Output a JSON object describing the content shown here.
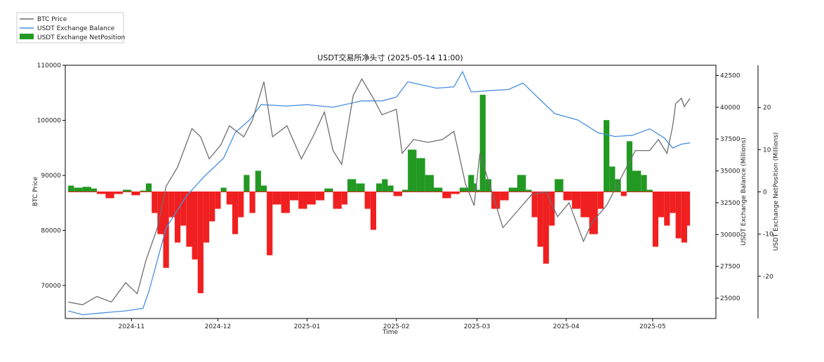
{
  "chart_data": {
    "type": "line",
    "title": "USDT交易所净头寸 (2025-05-14 11:00)",
    "xlabel": "Time",
    "y_left_label": "BTC Price",
    "y_right_label": "USDT Exchange Balance (Millions)",
    "y_right2_label": "USDT Exchange NetPosition (Millions)",
    "xlim": [
      "2024-10-09",
      "2025-05-23"
    ],
    "ylim_left": [
      64000,
      110000
    ],
    "ylim_right": [
      23400,
      43300
    ],
    "ylim_right2": [
      -30,
      30
    ],
    "x_tick_labels": [
      "2024-11",
      "2024-12",
      "2025-01",
      "2025-02",
      "2025-03",
      "2025-04",
      "2025-05"
    ],
    "x_tick_dates": [
      "2024-11-01",
      "2024-12-01",
      "2025-01-01",
      "2025-02-01",
      "2025-03-01",
      "2025-04-01",
      "2025-05-01"
    ],
    "y_left_ticks": [
      "70000",
      "80000",
      "90000",
      "100000",
      "110000"
    ],
    "y_left_tick_values": [
      70000,
      80000,
      90000,
      100000,
      110000
    ],
    "y_right_ticks": [
      "25000",
      "27500",
      "30000",
      "32500",
      "35000",
      "37500",
      "40000",
      "42500"
    ],
    "y_right_tick_values": [
      25000,
      27500,
      30000,
      32500,
      35000,
      37500,
      40000,
      42500
    ],
    "y_right2_ticks": [
      "-20",
      "-10",
      "0",
      "10",
      "20"
    ],
    "y_right2_tick_values": [
      -20,
      -10,
      0,
      10,
      20
    ],
    "legend_position": "top-left",
    "grid": false,
    "colors": {
      "btc": "#6e6e6e",
      "balance": "#4a8fe0",
      "positive": "#229922",
      "negative": "#f02020"
    },
    "series": [
      {
        "name": "BTC Price",
        "axis": "left",
        "points": [
          [
            "2024-10-10",
            67000
          ],
          [
            "2024-10-15",
            66500
          ],
          [
            "2024-10-20",
            68000
          ],
          [
            "2024-10-25",
            67000
          ],
          [
            "2024-10-30",
            70500
          ],
          [
            "2024-11-03",
            68500
          ],
          [
            "2024-11-06",
            74500
          ],
          [
            "2024-11-10",
            80500
          ],
          [
            "2024-11-13",
            88000
          ],
          [
            "2024-11-17",
            91500
          ],
          [
            "2024-11-22",
            98500
          ],
          [
            "2024-11-25",
            97000
          ],
          [
            "2024-11-28",
            93000
          ],
          [
            "2024-12-02",
            95500
          ],
          [
            "2024-12-05",
            99000
          ],
          [
            "2024-12-10",
            97000
          ],
          [
            "2024-12-13",
            100000
          ],
          [
            "2024-12-17",
            107000
          ],
          [
            "2024-12-20",
            97000
          ],
          [
            "2024-12-25",
            99000
          ],
          [
            "2024-12-30",
            93000
          ],
          [
            "2025-01-03",
            97000
          ],
          [
            "2025-01-07",
            101500
          ],
          [
            "2025-01-10",
            94500
          ],
          [
            "2025-01-13",
            92000
          ],
          [
            "2025-01-17",
            104500
          ],
          [
            "2025-01-20",
            107500
          ],
          [
            "2025-01-24",
            104000
          ],
          [
            "2025-01-27",
            101000
          ],
          [
            "2025-02-01",
            102000
          ],
          [
            "2025-02-03",
            94000
          ],
          [
            "2025-02-07",
            96500
          ],
          [
            "2025-02-12",
            96000
          ],
          [
            "2025-02-17",
            96500
          ],
          [
            "2025-02-21",
            98000
          ],
          [
            "2025-02-25",
            88500
          ],
          [
            "2025-02-28",
            84500
          ],
          [
            "2025-03-02",
            94000
          ],
          [
            "2025-03-05",
            89000
          ],
          [
            "2025-03-10",
            80500
          ],
          [
            "2025-03-15",
            83500
          ],
          [
            "2025-03-20",
            86500
          ],
          [
            "2025-03-25",
            87000
          ],
          [
            "2025-03-29",
            82500
          ],
          [
            "2025-04-02",
            85000
          ],
          [
            "2025-04-07",
            78000
          ],
          [
            "2025-04-10",
            81500
          ],
          [
            "2025-04-15",
            84500
          ],
          [
            "2025-04-22",
            91500
          ],
          [
            "2025-04-25",
            94500
          ],
          [
            "2025-04-30",
            94500
          ],
          [
            "2025-05-03",
            96500
          ],
          [
            "2025-05-06",
            94000
          ],
          [
            "2025-05-08",
            99000
          ],
          [
            "2025-05-09",
            103000
          ],
          [
            "2025-05-11",
            104000
          ],
          [
            "2025-05-12",
            102500
          ],
          [
            "2025-05-14",
            104000
          ]
        ]
      },
      {
        "name": "USDT Exchange Balance",
        "axis": "right",
        "points": [
          [
            "2024-10-10",
            24000
          ],
          [
            "2024-10-15",
            23700
          ],
          [
            "2024-10-20",
            23800
          ],
          [
            "2024-10-25",
            23900
          ],
          [
            "2024-10-30",
            24000
          ],
          [
            "2024-11-05",
            24200
          ],
          [
            "2024-11-07",
            25500
          ],
          [
            "2024-11-10",
            28000
          ],
          [
            "2024-11-13",
            30500
          ],
          [
            "2024-11-20",
            33000
          ],
          [
            "2024-11-26",
            34500
          ],
          [
            "2024-12-03",
            36000
          ],
          [
            "2024-12-07",
            38000
          ],
          [
            "2024-12-12",
            39000
          ],
          [
            "2024-12-16",
            40200
          ],
          [
            "2024-12-25",
            40100
          ],
          [
            "2025-01-01",
            40200
          ],
          [
            "2025-01-10",
            40000
          ],
          [
            "2025-01-20",
            40500
          ],
          [
            "2025-01-27",
            40500
          ],
          [
            "2025-02-01",
            40800
          ],
          [
            "2025-02-05",
            42000
          ],
          [
            "2025-02-15",
            41500
          ],
          [
            "2025-02-21",
            41600
          ],
          [
            "2025-02-24",
            42800
          ],
          [
            "2025-02-27",
            41200
          ],
          [
            "2025-03-05",
            41300
          ],
          [
            "2025-03-12",
            41400
          ],
          [
            "2025-03-17",
            41900
          ],
          [
            "2025-03-22",
            40800
          ],
          [
            "2025-03-28",
            39500
          ],
          [
            "2025-04-05",
            39000
          ],
          [
            "2025-04-12",
            38000
          ],
          [
            "2025-04-18",
            37700
          ],
          [
            "2025-04-24",
            37800
          ],
          [
            "2025-04-30",
            38300
          ],
          [
            "2025-05-05",
            37600
          ],
          [
            "2025-05-08",
            36800
          ],
          [
            "2025-05-11",
            37100
          ],
          [
            "2025-05-14",
            37200
          ]
        ]
      },
      {
        "name": "USDT Exchange NetPosition",
        "axis": "right2",
        "points": [
          [
            "2024-10-10",
            1.5
          ],
          [
            "2024-10-12",
            1.0
          ],
          [
            "2024-10-15",
            1.2
          ],
          [
            "2024-10-18",
            0.8
          ],
          [
            "2024-10-20",
            -0.5
          ],
          [
            "2024-10-23",
            -1.5
          ],
          [
            "2024-10-26",
            -0.5
          ],
          [
            "2024-10-29",
            0.5
          ],
          [
            "2024-11-01",
            -0.8
          ],
          [
            "2024-11-04",
            0.3
          ],
          [
            "2024-11-06",
            2.0
          ],
          [
            "2024-11-08",
            -5
          ],
          [
            "2024-11-10",
            -10
          ],
          [
            "2024-11-12",
            -18
          ],
          [
            "2024-11-14",
            -6
          ],
          [
            "2024-11-16",
            -12
          ],
          [
            "2024-11-18",
            -8
          ],
          [
            "2024-11-20",
            -13
          ],
          [
            "2024-11-22",
            -16
          ],
          [
            "2024-11-24",
            -24
          ],
          [
            "2024-11-26",
            -12
          ],
          [
            "2024-11-28",
            -7
          ],
          [
            "2024-11-30",
            -4
          ],
          [
            "2024-12-02",
            1.0
          ],
          [
            "2024-12-04",
            -3
          ],
          [
            "2024-12-06",
            -10
          ],
          [
            "2024-12-08",
            -6
          ],
          [
            "2024-12-10",
            4.0
          ],
          [
            "2024-12-12",
            -5
          ],
          [
            "2024-12-14",
            5.0
          ],
          [
            "2024-12-16",
            1.5
          ],
          [
            "2024-12-18",
            -15
          ],
          [
            "2024-12-20",
            -3
          ],
          [
            "2024-12-23",
            -5
          ],
          [
            "2024-12-26",
            -2
          ],
          [
            "2024-12-29",
            -4
          ],
          [
            "2025-01-01",
            -3
          ],
          [
            "2025-01-04",
            -2
          ],
          [
            "2025-01-07",
            0.8
          ],
          [
            "2025-01-10",
            -4
          ],
          [
            "2025-01-13",
            -3
          ],
          [
            "2025-01-15",
            3.0
          ],
          [
            "2025-01-18",
            2.0
          ],
          [
            "2025-01-21",
            -4
          ],
          [
            "2025-01-23",
            -9
          ],
          [
            "2025-01-25",
            2.0
          ],
          [
            "2025-01-27",
            3.0
          ],
          [
            "2025-01-29",
            1.5
          ],
          [
            "2025-01-31",
            -1
          ],
          [
            "2025-02-03",
            0.5
          ],
          [
            "2025-02-05",
            10
          ],
          [
            "2025-02-08",
            8
          ],
          [
            "2025-02-11",
            4
          ],
          [
            "2025-02-14",
            1
          ],
          [
            "2025-02-17",
            -1.5
          ],
          [
            "2025-02-20",
            -0.5
          ],
          [
            "2025-02-23",
            1.0
          ],
          [
            "2025-02-26",
            4.0
          ],
          [
            "2025-02-28",
            2.0
          ],
          [
            "2025-03-01",
            0.5
          ],
          [
            "2025-03-02",
            23
          ],
          [
            "2025-03-04",
            3.0
          ],
          [
            "2025-03-06",
            -4
          ],
          [
            "2025-03-09",
            -2
          ],
          [
            "2025-03-12",
            1.0
          ],
          [
            "2025-03-15",
            4.0
          ],
          [
            "2025-03-18",
            0.5
          ],
          [
            "2025-03-20",
            -6
          ],
          [
            "2025-03-22",
            -13
          ],
          [
            "2025-03-24",
            -17
          ],
          [
            "2025-03-26",
            -8
          ],
          [
            "2025-03-28",
            3.0
          ],
          [
            "2025-03-31",
            -2
          ],
          [
            "2025-04-03",
            -4
          ],
          [
            "2025-04-06",
            -6
          ],
          [
            "2025-04-09",
            -10
          ],
          [
            "2025-04-12",
            -4
          ],
          [
            "2025-04-14",
            17
          ],
          [
            "2025-04-16",
            6
          ],
          [
            "2025-04-18",
            3.0
          ],
          [
            "2025-04-20",
            -1
          ],
          [
            "2025-04-22",
            12
          ],
          [
            "2025-04-24",
            5.0
          ],
          [
            "2025-04-27",
            4.0
          ],
          [
            "2025-04-29",
            0.5
          ],
          [
            "2025-05-01",
            -13
          ],
          [
            "2025-05-03",
            -6
          ],
          [
            "2025-05-05",
            -8
          ],
          [
            "2025-05-07",
            -5
          ],
          [
            "2025-05-09",
            -11
          ],
          [
            "2025-05-11",
            -12
          ],
          [
            "2025-05-13",
            -8
          ],
          [
            "2025-05-14",
            -4
          ]
        ]
      }
    ]
  },
  "legend": {
    "items": [
      {
        "label": "BTC Price",
        "kind": "line",
        "color": "#6e6e6e"
      },
      {
        "label": "USDT Exchange Balance",
        "kind": "line",
        "color": "#4a8fe0"
      },
      {
        "label": "USDT Exchange NetPosition",
        "kind": "patch",
        "color": "#229922"
      }
    ]
  }
}
